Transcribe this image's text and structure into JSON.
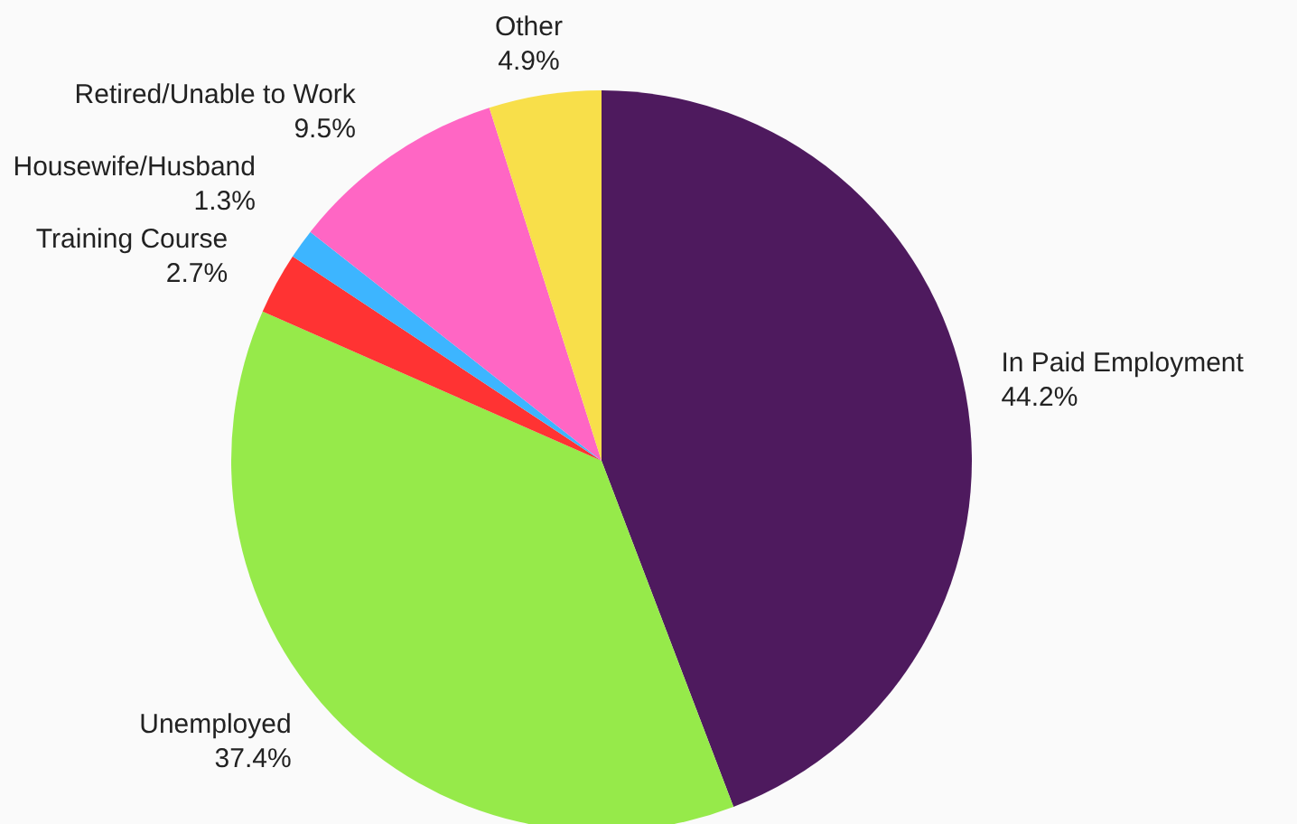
{
  "chart_data": {
    "type": "pie",
    "categories": [
      "In Paid Employment",
      "Unemployed",
      "Training Course",
      "Housewife/Husband",
      "Retired/Unable to Work",
      "Other"
    ],
    "values": [
      44.2,
      37.4,
      2.7,
      1.3,
      9.5,
      4.9
    ],
    "value_labels": [
      "44.2%",
      "37.4%",
      "2.7%",
      "1.3%",
      "9.5%",
      "4.9%"
    ],
    "colors": [
      "#4e1a5e",
      "#96ea4a",
      "#ff3333",
      "#3db5ff",
      "#ff66c4",
      "#f8df4a"
    ],
    "legend": false
  }
}
